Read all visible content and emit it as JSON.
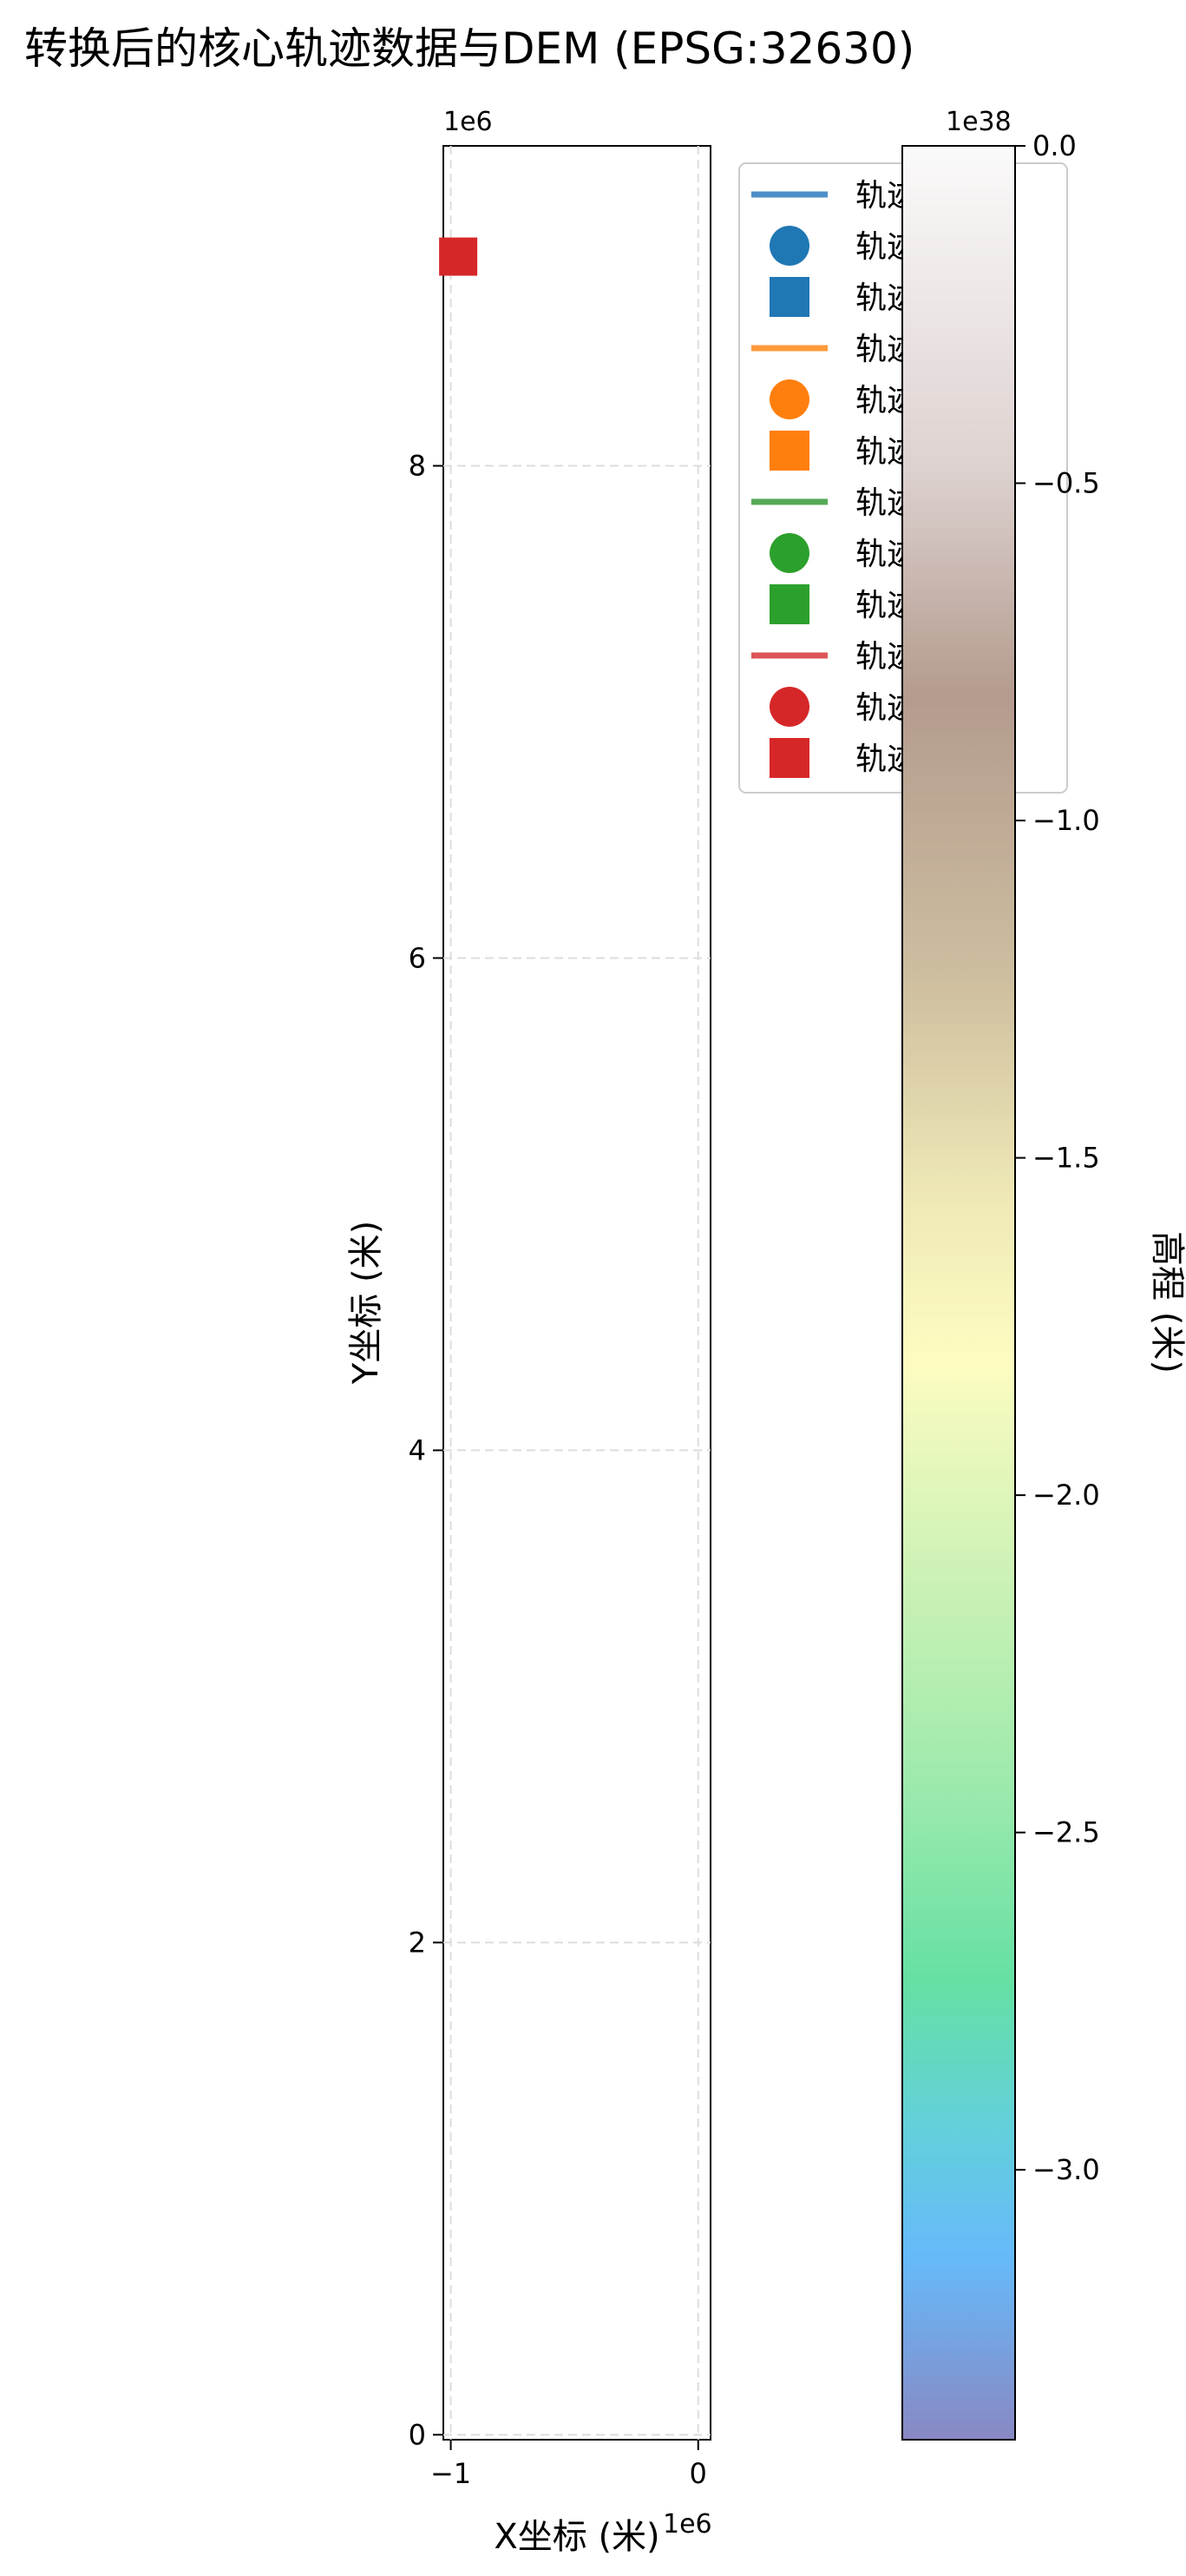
{
  "chart_data": {
    "type": "scatter",
    "title": "转换后的核心轨迹数据与DEM (EPSG:32630)",
    "xlabel": "X坐标 (米)",
    "ylabel": "Y坐标 (米)",
    "x_offset_text": "1e6",
    "y_offset_text": "1e6",
    "xlim": [
      -1.03,
      0.05
    ],
    "ylim": [
      -0.02,
      9.3
    ],
    "x_ticks": [
      -1,
      0
    ],
    "x_tick_labels": [
      "−1",
      "0"
    ],
    "y_ticks": [
      0,
      2,
      4,
      6,
      8
    ],
    "y_tick_labels": [
      "0",
      "2",
      "4",
      "6",
      "8"
    ],
    "grid": true,
    "legend_position": "upper right",
    "legend": [
      {
        "marker": "line",
        "color": "#4e8ec8",
        "label": "轨迹"
      },
      {
        "marker": "circle",
        "color": "#1f77b4",
        "label": "轨迹起点"
      },
      {
        "marker": "square",
        "color": "#1f77b4",
        "label": "轨迹终点"
      },
      {
        "marker": "line",
        "color": "#ff9a3c",
        "label": "轨迹"
      },
      {
        "marker": "circle",
        "color": "#ff7f0e",
        "label": "轨迹起点"
      },
      {
        "marker": "square",
        "color": "#ff7f0e",
        "label": "轨迹终点"
      },
      {
        "marker": "line",
        "color": "#55aa55",
        "label": "轨迹"
      },
      {
        "marker": "circle",
        "color": "#2ca02c",
        "label": "轨迹起点"
      },
      {
        "marker": "square",
        "color": "#2ca02c",
        "label": "轨迹终点"
      },
      {
        "marker": "line",
        "color": "#dd5555",
        "label": "轨迹"
      },
      {
        "marker": "circle",
        "color": "#d62728",
        "label": "轨迹起点"
      },
      {
        "marker": "square",
        "color": "#d62728",
        "label": "轨迹终点"
      }
    ],
    "points": [
      {
        "x": -0.97,
        "y": 8.85,
        "marker": "square",
        "color": "#d62728"
      }
    ],
    "colorbar": {
      "label": "高程 (米)",
      "offset_text": "1e38",
      "range": [
        -3.4,
        0.0
      ],
      "ticks": [
        0.0,
        -0.5,
        -1.0,
        -1.5,
        -2.0,
        -2.5,
        -3.0
      ],
      "tick_labels": [
        "0.0",
        "−0.5",
        "−1.0",
        "−1.5",
        "−2.0",
        "−2.5",
        "−3.0"
      ],
      "colormap": "terrain",
      "alpha": 0.6
    }
  }
}
